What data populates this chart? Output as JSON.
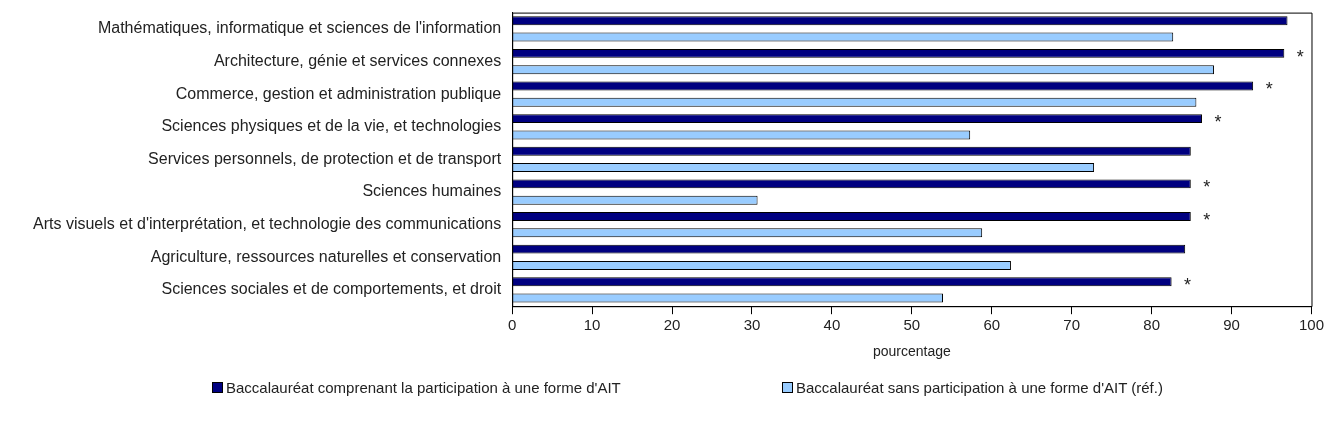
{
  "chart_data": {
    "type": "bar",
    "orientation": "horizontal",
    "xlabel": "pourcentage",
    "categories": [
      "Mathématiques, informatique et sciences de l'information",
      "Architecture, génie et services connexes",
      "Commerce, gestion et administration publique",
      "Sciences physiques et de la vie, et technologies",
      "Services personnels, de protection et de transport",
      "Sciences humaines",
      "Arts visuels et d'interprétation, et technologie des communications",
      "Agriculture, ressources naturelles et conservation",
      "Sciences sociales et de comportements, et droit"
    ],
    "series": [
      {
        "name": "Baccalauréat comprenant la participation à une forme d'AIT",
        "color": "#000080",
        "values": [
          97.0,
          96.6,
          92.7,
          86.3,
          84.9,
          84.9,
          84.9,
          84.2,
          82.5
        ]
      },
      {
        "name": "Baccalauréat sans participation à une forme d'AIT (réf.)",
        "color": "#99ccff",
        "values": [
          82.7,
          87.8,
          85.6,
          57.3,
          72.8,
          30.7,
          58.8,
          62.4,
          53.9
        ]
      }
    ],
    "xlim": [
      0,
      100
    ],
    "xticks": [
      0,
      10,
      20,
      30,
      40,
      50,
      60,
      70,
      80,
      90,
      100
    ],
    "grid": false,
    "legend": "bottom",
    "annotations": [
      {
        "text": "*",
        "x": 96.6,
        "y": "Architecture, génie et services connexes"
      },
      {
        "text": "*",
        "x": 92.7,
        "y": "Commerce, gestion et administration publique"
      },
      {
        "text": "*",
        "x": 86.3,
        "y": "Sciences physiques et de la vie, et technologies"
      },
      {
        "text": "*",
        "x": 84.9,
        "y": "Sciences humaines"
      },
      {
        "text": "*",
        "x": 84.9,
        "y": "Arts visuels et d'interprétation, et technologie des communications"
      },
      {
        "text": "*",
        "x": 82.5,
        "y": "Sciences sociales et de comportements, et droit"
      }
    ]
  }
}
